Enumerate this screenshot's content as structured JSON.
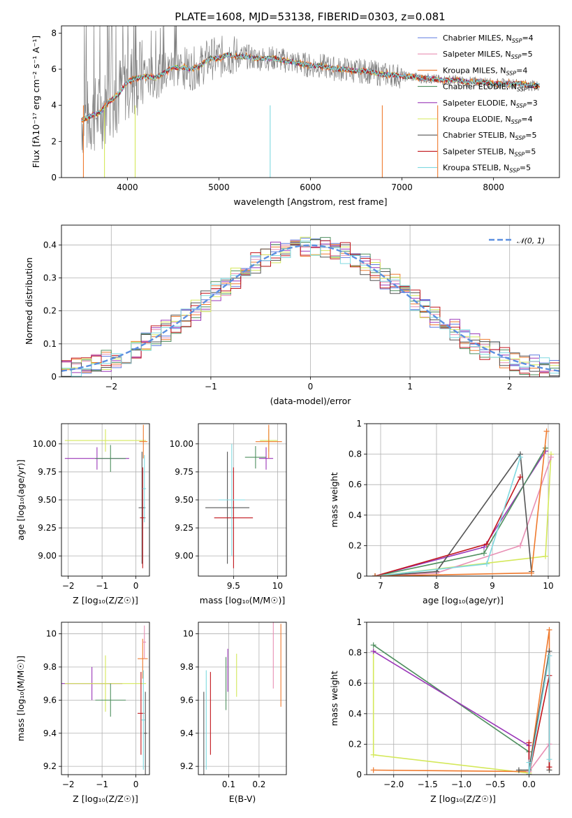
{
  "figure": {
    "title": "PLATE=1608, MJD=53138, FIBERID=0303, z=0.081"
  },
  "colors": {
    "Chabrier MILES": "#5e7ae0",
    "Salpeter MILES": "#e88fb4",
    "Kroupa MILES": "#ef7a2e",
    "Chabrier ELODIE": "#4f8f5f",
    "Salpeter ELODIE": "#9a36b8",
    "Kroupa ELODIE": "#d4e85a",
    "Chabrier STELIB": "#555555",
    "Salpeter STELIB": "#c1161c",
    "Kroupa STELIB": "#7fd9e0",
    "observed": "#808080",
    "gaussian": "#5b8fe0"
  },
  "chart_data": [
    {
      "id": "spectrum",
      "type": "line",
      "title": "PLATE=1608, MJD=53138, FIBERID=0303, z=0.081",
      "xlabel": "wavelength [Angstrom, rest frame]",
      "ylabel": "Flux [fλ10⁻¹⁷ erg cm⁻² s⁻¹ A⁻¹]",
      "xlim": [
        3280,
        8720
      ],
      "ylim": [
        0,
        8.4
      ],
      "xticks": [
        4000,
        5000,
        6000,
        7000,
        8000
      ],
      "yticks": [
        0,
        2,
        4,
        6,
        8
      ],
      "grid": false,
      "legend_position": "top-right",
      "legend": [
        {
          "model": "Chabrier MILES",
          "n": "4"
        },
        {
          "model": "Salpeter MILES",
          "n": "5"
        },
        {
          "model": "Kroupa MILES",
          "n": "4"
        },
        {
          "model": "Chabrier ELODIE",
          "n": "3"
        },
        {
          "model": "Salpeter ELODIE",
          "n": "3"
        },
        {
          "model": "Kroupa ELODIE",
          "n": "4"
        },
        {
          "model": "Chabrier STELIB",
          "n": "5"
        },
        {
          "model": "Salpeter STELIB",
          "n": "5"
        },
        {
          "model": "Kroupa STELIB",
          "n": "5"
        }
      ],
      "continuum": [
        [
          3500,
          3.2
        ],
        [
          3600,
          3.4
        ],
        [
          3700,
          3.6
        ],
        [
          3800,
          4.2
        ],
        [
          3900,
          4.6
        ],
        [
          4000,
          5.3
        ],
        [
          4100,
          5.5
        ],
        [
          4200,
          5.6
        ],
        [
          4300,
          5.5
        ],
        [
          4400,
          5.8
        ],
        [
          4500,
          6.1
        ],
        [
          4600,
          6.1
        ],
        [
          4700,
          6.0
        ],
        [
          4800,
          6.2
        ],
        [
          4900,
          6.6
        ],
        [
          5000,
          6.6
        ],
        [
          5100,
          6.8
        ],
        [
          5200,
          6.7
        ],
        [
          5300,
          6.7
        ],
        [
          5400,
          6.6
        ],
        [
          5500,
          6.6
        ],
        [
          5600,
          6.6
        ],
        [
          5700,
          6.5
        ],
        [
          5800,
          6.4
        ],
        [
          5900,
          6.3
        ],
        [
          6000,
          6.2
        ],
        [
          6100,
          6.2
        ],
        [
          6200,
          6.1
        ],
        [
          6300,
          6.0
        ],
        [
          6400,
          6.0
        ],
        [
          6500,
          5.9
        ],
        [
          6600,
          5.9
        ],
        [
          6700,
          5.8
        ],
        [
          6800,
          5.7
        ],
        [
          6900,
          5.7
        ],
        [
          7000,
          5.6
        ],
        [
          7100,
          5.6
        ],
        [
          7200,
          5.5
        ],
        [
          7300,
          5.5
        ],
        [
          7400,
          5.4
        ],
        [
          7500,
          5.4
        ],
        [
          7600,
          5.4
        ],
        [
          7700,
          5.3
        ],
        [
          7800,
          5.3
        ],
        [
          7900,
          5.3
        ],
        [
          8000,
          5.2
        ],
        [
          8100,
          5.2
        ],
        [
          8200,
          5.2
        ],
        [
          8300,
          5.2
        ],
        [
          8400,
          5.1
        ],
        [
          8500,
          5.1
        ]
      ]
    },
    {
      "id": "residuals",
      "type": "histogram",
      "xlabel": "(data-model)/error",
      "ylabel": "Normed distribution",
      "xlim": [
        -2.5,
        2.5
      ],
      "ylim": [
        0,
        0.46
      ],
      "xticks": [
        -2,
        -1,
        0,
        1,
        2
      ],
      "yticks": [
        0.0,
        0.1,
        0.2,
        0.3,
        0.4
      ],
      "grid": true,
      "legend_position": "top-right",
      "legend": [
        "𝒩(0, 1)"
      ],
      "gaussian": {
        "mean": 0,
        "sigma": 1
      }
    },
    {
      "id": "age-vs-Z",
      "type": "errorbar",
      "xlabel": "Z [log₁₀(Z/Z☉)]",
      "ylabel": "age  [log₁₀(age/yr)]",
      "xlim": [
        -2.2,
        0.4
      ],
      "ylim": [
        8.82,
        10.18
      ],
      "xticks": [
        -2,
        -1,
        0
      ],
      "yticks": [
        9.0,
        9.25,
        9.5,
        9.75,
        10.0
      ],
      "yticklabels": [
        "9.00",
        "9.25",
        "9.50",
        "9.75",
        "10.00"
      ],
      "grid": true,
      "points": [
        {
          "model": "Kroupa ELODIE",
          "x": -0.9,
          "xerr": 1.2,
          "y": 10.03,
          "yerr": 0.1
        },
        {
          "model": "Salpeter ELODIE",
          "x": -1.15,
          "xerr": 0.95,
          "y": 9.87,
          "yerr": 0.1
        },
        {
          "model": "Chabrier ELODIE",
          "x": -0.75,
          "xerr": 0.45,
          "y": 9.87,
          "yerr": 0.12
        },
        {
          "model": "Kroupa MILES",
          "x": 0.22,
          "xerr": 0.12,
          "y": 10.02,
          "yerr": 0.15
        },
        {
          "model": "Chabrier STELIB",
          "x": 0.18,
          "xerr": 0.1,
          "y": 9.43,
          "yerr": 0.5
        },
        {
          "model": "Salpeter STELIB",
          "x": 0.2,
          "xerr": 0.08,
          "y": 9.34,
          "yerr": 0.45
        },
        {
          "model": "Kroupa STELIB",
          "x": 0.25,
          "xerr": 0.05,
          "y": 9.6,
          "yerr": 0.3
        }
      ]
    },
    {
      "id": "age-vs-mass",
      "type": "errorbar",
      "xlabel": "mass [log₁₀(M/M☉)]",
      "ylabel": "",
      "xlim": [
        9.1,
        10.1
      ],
      "ylim": [
        8.82,
        10.18
      ],
      "xticks": [
        9.5,
        10.0
      ],
      "yticks": [
        9.0,
        9.25,
        9.5,
        9.75,
        10.0
      ],
      "yticklabels": [
        "9.00",
        "9.25",
        "9.50",
        "9.75",
        "10.00"
      ],
      "grid": true,
      "points": [
        {
          "model": "Kroupa ELODIE",
          "x": 9.9,
          "xerr": 0.1,
          "y": 10.03,
          "yerr": 0.1
        },
        {
          "model": "Chabrier ELODIE",
          "x": 9.75,
          "xerr": 0.12,
          "y": 9.88,
          "yerr": 0.1
        },
        {
          "model": "Salpeter ELODIE",
          "x": 9.87,
          "xerr": 0.08,
          "y": 9.87,
          "yerr": 0.1
        },
        {
          "model": "Kroupa MILES",
          "x": 9.9,
          "xerr": 0.15,
          "y": 10.02,
          "yerr": 0.15
        },
        {
          "model": "Chabrier STELIB",
          "x": 9.43,
          "xerr": 0.25,
          "y": 9.43,
          "yerr": 0.5
        },
        {
          "model": "Salpeter STELIB",
          "x": 9.5,
          "xerr": 0.22,
          "y": 9.34,
          "yerr": 0.45
        },
        {
          "model": "Kroupa STELIB",
          "x": 9.48,
          "xerr": 0.15,
          "y": 9.5,
          "yerr": 0.5
        }
      ]
    },
    {
      "id": "weight-vs-age",
      "type": "line",
      "xlabel": "age  [log₁₀(age/yr)]",
      "ylabel": "mass weight",
      "xlim": [
        6.75,
        10.2
      ],
      "ylim": [
        0,
        1
      ],
      "xticks": [
        7,
        8,
        9,
        10
      ],
      "yticks": [
        0.0,
        0.2,
        0.4,
        0.6,
        0.8,
        1.0
      ],
      "grid": true,
      "series": [
        {
          "model": "Kroupa ELODIE",
          "x": [
            6.9,
            9.95,
            10.05
          ],
          "y": [
            0.0,
            0.13,
            0.8
          ]
        },
        {
          "model": "Salpeter MILES",
          "x": [
            6.9,
            8.0,
            9.5,
            10.05
          ],
          "y": [
            0.0,
            0.02,
            0.2,
            0.78
          ]
        },
        {
          "model": "Salpeter ELODIE",
          "x": [
            6.9,
            8.85,
            9.95
          ],
          "y": [
            0.0,
            0.19,
            0.82
          ]
        },
        {
          "model": "Chabrier ELODIE",
          "x": [
            6.9,
            8.85,
            9.95
          ],
          "y": [
            0.0,
            0.15,
            0.84
          ]
        },
        {
          "model": "Chabrier STELIB",
          "x": [
            6.9,
            8.0,
            9.5,
            9.7
          ],
          "y": [
            0.0,
            0.03,
            0.8,
            0.03
          ]
        },
        {
          "model": "Salpeter STELIB",
          "x": [
            6.9,
            8.9,
            9.5
          ],
          "y": [
            0.0,
            0.21,
            0.65
          ]
        },
        {
          "model": "Kroupa STELIB",
          "x": [
            6.9,
            8.9,
            9.5
          ],
          "y": [
            0.0,
            0.08,
            0.78
          ]
        },
        {
          "model": "Kroupa MILES",
          "x": [
            6.9,
            9.7,
            9.97
          ],
          "y": [
            0.0,
            0.02,
            0.95
          ]
        }
      ]
    },
    {
      "id": "mass-vs-Z",
      "type": "errorbar",
      "xlabel": "Z [log₁₀(Z/Z☉)]",
      "ylabel": "mass [log₁₀(M/M☉)]",
      "xlim": [
        -2.2,
        0.4
      ],
      "ylim": [
        9.15,
        10.07
      ],
      "xticks": [
        -2,
        -1,
        0
      ],
      "yticks": [
        9.2,
        9.4,
        9.6,
        9.8,
        10.0
      ],
      "grid": true,
      "points": [
        {
          "model": "Salpeter ELODIE",
          "x": -1.3,
          "xerr": 0.9,
          "y": 9.7,
          "yerr": 0.1
        },
        {
          "model": "Kroupa ELODIE",
          "x": -0.9,
          "xerr": 1.2,
          "y": 9.7,
          "yerr": 0.17
        },
        {
          "model": "Chabrier ELODIE",
          "x": -0.75,
          "xerr": 0.45,
          "y": 9.6,
          "yerr": 0.1
        },
        {
          "model": "Kroupa MILES",
          "x": 0.2,
          "xerr": 0.15,
          "y": 9.85,
          "yerr": 0.12
        },
        {
          "model": "Salpeter MILES",
          "x": 0.25,
          "xerr": 0.05,
          "y": 9.95,
          "yerr": 0.1
        },
        {
          "model": "Salpeter STELIB",
          "x": 0.15,
          "xerr": 0.1,
          "y": 9.52,
          "yerr": 0.25
        },
        {
          "model": "Kroupa STELIB",
          "x": 0.22,
          "xerr": 0.06,
          "y": 9.48,
          "yerr": 0.3
        },
        {
          "model": "Chabrier STELIB",
          "x": 0.28,
          "xerr": 0.05,
          "y": 9.4,
          "yerr": 0.25
        }
      ]
    },
    {
      "id": "mass-vs-EBV",
      "type": "errorbar",
      "xlabel": "E(B-V)",
      "ylabel": "",
      "xlim": [
        0.0,
        0.29
      ],
      "ylim": [
        9.15,
        10.07
      ],
      "xticks": [
        0.1,
        0.2
      ],
      "yticks": [
        9.2,
        9.4,
        9.6,
        9.8,
        10.0
      ],
      "grid": true,
      "points": [
        {
          "model": "Chabrier STELIB",
          "x": 0.018,
          "xerr": 0,
          "y": 9.4,
          "yerr": 0.25
        },
        {
          "model": "Kroupa STELIB",
          "x": 0.026,
          "xerr": 0,
          "y": 9.48,
          "yerr": 0.3
        },
        {
          "model": "Salpeter STELIB",
          "x": 0.04,
          "xerr": 0,
          "y": 9.52,
          "yerr": 0.25
        },
        {
          "model": "Chabrier ELODIE",
          "x": 0.091,
          "xerr": 0,
          "y": 9.7,
          "yerr": 0.16
        },
        {
          "model": "Salpeter ELODIE",
          "x": 0.097,
          "xerr": 0,
          "y": 9.78,
          "yerr": 0.13
        },
        {
          "model": "Kroupa ELODIE",
          "x": 0.126,
          "xerr": 0,
          "y": 9.75,
          "yerr": 0.13
        },
        {
          "model": "Salpeter MILES",
          "x": 0.247,
          "xerr": 0,
          "y": 9.87,
          "yerr": 0.2
        },
        {
          "model": "Kroupa MILES",
          "x": 0.272,
          "xerr": 0,
          "y": 9.81,
          "yerr": 0.25
        }
      ]
    },
    {
      "id": "weight-vs-Z",
      "type": "line",
      "xlabel": "Z [log₁₀(Z/Z☉)]",
      "ylabel": "mass weight",
      "xlim": [
        -2.4,
        0.45
      ],
      "ylim": [
        0,
        1
      ],
      "xticks": [
        -2.0,
        -1.5,
        -1.0,
        -0.5,
        0.0
      ],
      "xticklabels": [
        "−2.0",
        "−1.5",
        "−1.0",
        "−0.5",
        "0.0"
      ],
      "yticks": [
        0.0,
        0.2,
        0.4,
        0.6,
        0.8,
        1.0
      ],
      "grid": true,
      "series": [
        {
          "model": "Kroupa ELODIE",
          "x": [
            -2.3,
            -2.3,
            0.0,
            0.0
          ],
          "y": [
            0.81,
            0.13,
            0.01,
            0.0
          ]
        },
        {
          "model": "Chabrier ELODIE",
          "x": [
            -2.3,
            0.0,
            0.0
          ],
          "y": [
            0.85,
            0.15,
            0.0
          ]
        },
        {
          "model": "Salpeter ELODIE",
          "x": [
            -2.3,
            0.0,
            0.0
          ],
          "y": [
            0.81,
            0.19,
            0.0
          ]
        },
        {
          "model": "Kroupa MILES",
          "x": [
            -2.3,
            0.0,
            0.3,
            0.3
          ],
          "y": [
            0.03,
            0.02,
            0.95,
            0.03
          ]
        },
        {
          "model": "Salpeter MILES",
          "x": [
            0.0,
            0.3,
            0.3
          ],
          "y": [
            0.02,
            0.2,
            0.78
          ]
        },
        {
          "model": "Chabrier STELIB",
          "x": [
            -0.15,
            0.0,
            0.3,
            0.3
          ],
          "y": [
            0.03,
            0.03,
            0.81,
            0.03
          ]
        },
        {
          "model": "Salpeter STELIB",
          "x": [
            0.0,
            0.0,
            0.3,
            0.3
          ],
          "y": [
            0.21,
            0.0,
            0.65,
            0.05
          ]
        },
        {
          "model": "Kroupa STELIB",
          "x": [
            0.0,
            0.0,
            0.3,
            0.3
          ],
          "y": [
            0.08,
            0.0,
            0.78,
            0.1
          ]
        }
      ]
    }
  ]
}
